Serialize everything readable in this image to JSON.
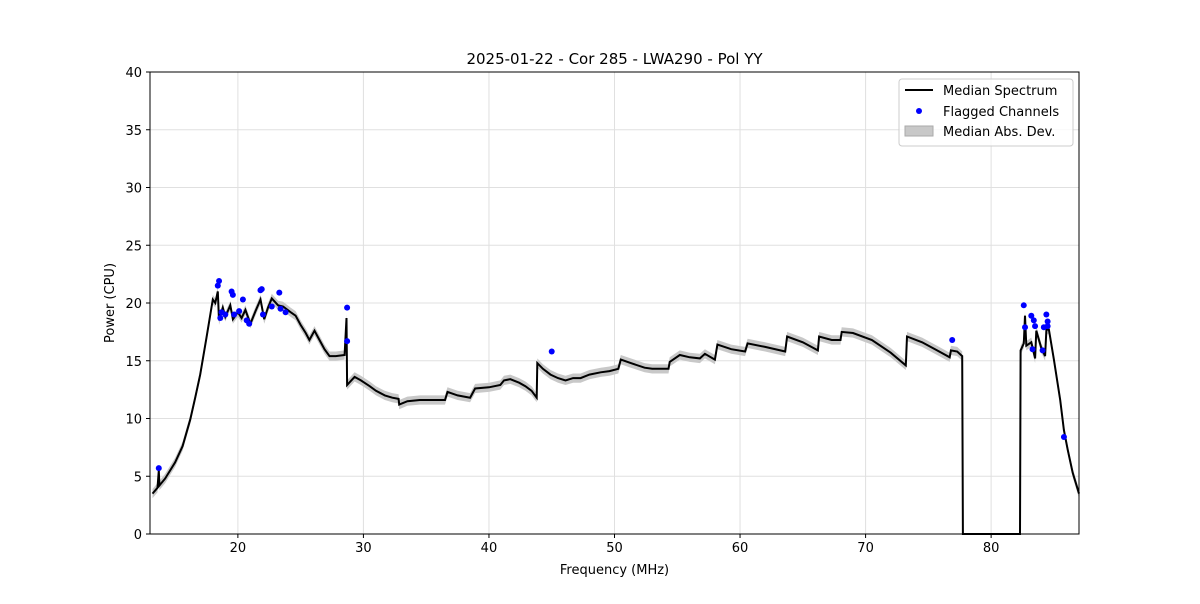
{
  "chart_data": {
    "type": "line",
    "title": "2025-01-22 - Cor 285 - LWA290 - Pol YY",
    "xlabel": "Frequency (MHz)",
    "ylabel": "Power (CPU)",
    "xlim": [
      13,
      87
    ],
    "ylim": [
      0,
      40
    ],
    "xticks": [
      20,
      30,
      40,
      50,
      60,
      70,
      80
    ],
    "yticks": [
      0,
      5,
      10,
      15,
      20,
      25,
      30,
      35,
      40
    ],
    "grid": true,
    "legend_position": "top-right",
    "legend": [
      "Median Spectrum",
      "Flagged Channels",
      "Median Abs. Dev."
    ],
    "colors": {
      "median": "#000000",
      "flagged": "#0000ff",
      "mad": "#c8c8c8"
    },
    "mad_halfwidth": 0.4,
    "median_spectrum": [
      [
        13.2,
        3.5
      ],
      [
        13.6,
        4.0
      ],
      [
        13.7,
        5.5
      ],
      [
        13.75,
        4.2
      ],
      [
        14.2,
        4.8
      ],
      [
        15.0,
        6.2
      ],
      [
        15.6,
        7.6
      ],
      [
        16.2,
        9.9
      ],
      [
        16.6,
        11.8
      ],
      [
        17.0,
        13.8
      ],
      [
        17.5,
        17.0
      ],
      [
        18.0,
        20.3
      ],
      [
        18.2,
        20.0
      ],
      [
        18.4,
        21.0
      ],
      [
        18.5,
        18.5
      ],
      [
        18.8,
        19.6
      ],
      [
        19.0,
        18.8
      ],
      [
        19.4,
        19.8
      ],
      [
        19.6,
        18.6
      ],
      [
        20.0,
        19.2
      ],
      [
        20.3,
        18.7
      ],
      [
        20.6,
        19.4
      ],
      [
        21.0,
        18.2
      ],
      [
        21.4,
        19.3
      ],
      [
        21.8,
        20.3
      ],
      [
        22.1,
        18.6
      ],
      [
        22.4,
        19.6
      ],
      [
        22.7,
        20.4
      ],
      [
        23.2,
        19.8
      ],
      [
        23.6,
        19.7
      ],
      [
        24.2,
        19.2
      ],
      [
        24.6,
        18.9
      ],
      [
        25.0,
        18.1
      ],
      [
        25.4,
        17.4
      ],
      [
        25.7,
        16.8
      ],
      [
        26.1,
        17.6
      ],
      [
        26.4,
        17.0
      ],
      [
        26.9,
        16.0
      ],
      [
        27.3,
        15.4
      ],
      [
        27.8,
        15.4
      ],
      [
        28.5,
        15.5
      ],
      [
        28.65,
        18.7
      ],
      [
        28.7,
        12.9
      ],
      [
        29.3,
        13.6
      ],
      [
        29.8,
        13.3
      ],
      [
        30.5,
        12.8
      ],
      [
        31.0,
        12.4
      ],
      [
        31.7,
        12.0
      ],
      [
        32.3,
        11.8
      ],
      [
        32.8,
        11.7
      ],
      [
        32.85,
        11.2
      ],
      [
        33.5,
        11.5
      ],
      [
        34.5,
        11.6
      ],
      [
        35.5,
        11.6
      ],
      [
        36.5,
        11.6
      ],
      [
        36.7,
        12.3
      ],
      [
        37.5,
        12.0
      ],
      [
        38.5,
        11.8
      ],
      [
        38.9,
        12.6
      ],
      [
        40.0,
        12.7
      ],
      [
        40.9,
        12.9
      ],
      [
        41.2,
        13.3
      ],
      [
        41.7,
        13.4
      ],
      [
        42.4,
        13.1
      ],
      [
        42.9,
        12.8
      ],
      [
        43.4,
        12.4
      ],
      [
        43.8,
        11.8
      ],
      [
        43.85,
        14.8
      ],
      [
        44.3,
        14.3
      ],
      [
        44.9,
        13.8
      ],
      [
        45.5,
        13.5
      ],
      [
        46.1,
        13.3
      ],
      [
        46.7,
        13.5
      ],
      [
        47.3,
        13.5
      ],
      [
        48.0,
        13.8
      ],
      [
        48.9,
        14.0
      ],
      [
        49.6,
        14.1
      ],
      [
        50.3,
        14.3
      ],
      [
        50.5,
        15.1
      ],
      [
        51.3,
        14.8
      ],
      [
        52.4,
        14.4
      ],
      [
        53.0,
        14.3
      ],
      [
        54.3,
        14.3
      ],
      [
        54.4,
        14.9
      ],
      [
        55.2,
        15.5
      ],
      [
        56.0,
        15.3
      ],
      [
        56.8,
        15.2
      ],
      [
        57.2,
        15.6
      ],
      [
        58.0,
        15.1
      ],
      [
        58.2,
        16.4
      ],
      [
        59.3,
        16.0
      ],
      [
        60.4,
        15.8
      ],
      [
        60.6,
        16.5
      ],
      [
        62.0,
        16.2
      ],
      [
        63.6,
        15.8
      ],
      [
        63.75,
        17.1
      ],
      [
        65.0,
        16.6
      ],
      [
        66.2,
        15.9
      ],
      [
        66.3,
        17.1
      ],
      [
        67.3,
        16.8
      ],
      [
        68.0,
        16.8
      ],
      [
        68.1,
        17.5
      ],
      [
        69.0,
        17.4
      ],
      [
        70.5,
        16.8
      ],
      [
        72.0,
        15.7
      ],
      [
        73.2,
        14.6
      ],
      [
        73.3,
        17.1
      ],
      [
        74.5,
        16.6
      ],
      [
        75.7,
        15.9
      ],
      [
        76.7,
        15.3
      ],
      [
        76.8,
        15.9
      ],
      [
        77.3,
        15.8
      ],
      [
        77.7,
        15.4
      ],
      [
        77.75,
        0
      ],
      [
        82.3,
        0
      ],
      [
        82.35,
        15.9
      ],
      [
        82.6,
        16.5
      ],
      [
        82.7,
        18.9
      ],
      [
        82.8,
        16.3
      ],
      [
        83.2,
        16.6
      ],
      [
        83.5,
        15.2
      ],
      [
        83.6,
        17.6
      ],
      [
        84.0,
        16.1
      ],
      [
        84.3,
        15.4
      ],
      [
        84.4,
        17.7
      ],
      [
        84.6,
        17.7
      ],
      [
        85.0,
        15.1
      ],
      [
        85.5,
        11.6
      ],
      [
        85.8,
        9.0
      ],
      [
        86.1,
        7.3
      ],
      [
        86.5,
        5.3
      ],
      [
        87.0,
        3.5
      ]
    ],
    "flagged_channels": [
      [
        13.7,
        5.7
      ],
      [
        18.4,
        21.5
      ],
      [
        18.5,
        21.9
      ],
      [
        18.6,
        18.7
      ],
      [
        18.7,
        19.2
      ],
      [
        19.0,
        19.0
      ],
      [
        19.5,
        21.0
      ],
      [
        19.6,
        20.7
      ],
      [
        19.7,
        19.0
      ],
      [
        20.1,
        19.3
      ],
      [
        20.4,
        20.3
      ],
      [
        20.7,
        18.5
      ],
      [
        20.9,
        18.2
      ],
      [
        21.8,
        21.1
      ],
      [
        21.9,
        21.2
      ],
      [
        22.0,
        19.0
      ],
      [
        22.7,
        19.7
      ],
      [
        23.3,
        20.9
      ],
      [
        23.4,
        19.5
      ],
      [
        23.8,
        19.2
      ],
      [
        28.7,
        19.6
      ],
      [
        28.7,
        16.7
      ],
      [
        45.0,
        15.8
      ],
      [
        76.9,
        16.8
      ],
      [
        82.6,
        19.8
      ],
      [
        82.7,
        17.9
      ],
      [
        83.2,
        18.9
      ],
      [
        83.3,
        16.0
      ],
      [
        83.4,
        18.5
      ],
      [
        83.5,
        18.0
      ],
      [
        84.1,
        15.9
      ],
      [
        84.2,
        17.9
      ],
      [
        84.4,
        19.0
      ],
      [
        84.5,
        18.0
      ],
      [
        84.5,
        18.4
      ],
      [
        85.8,
        8.4
      ]
    ]
  }
}
